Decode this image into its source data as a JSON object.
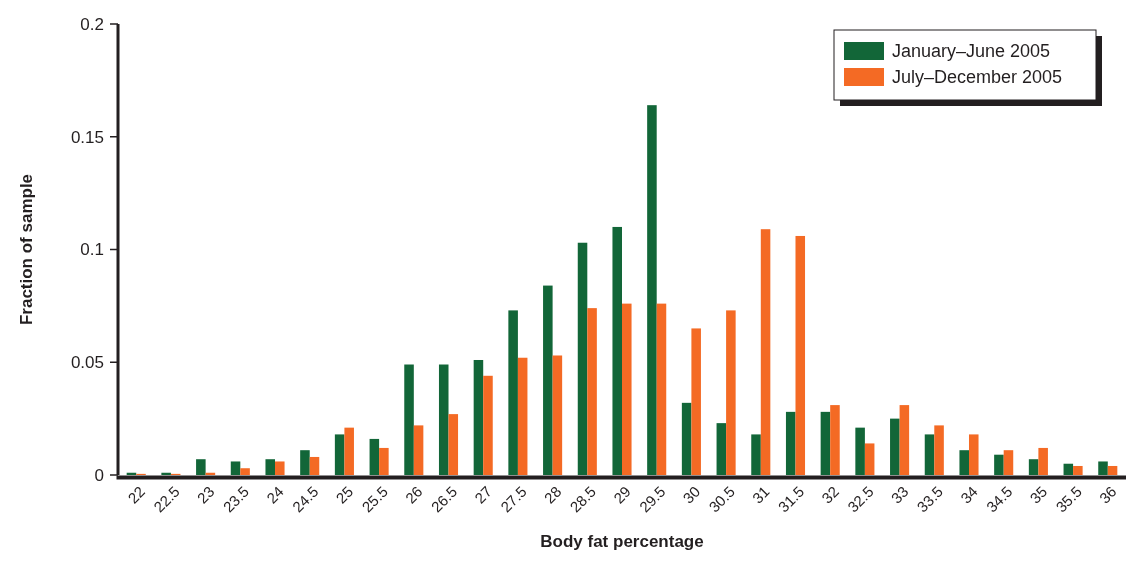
{
  "chart_data": {
    "type": "bar",
    "xlabel": "Body fat percentage",
    "ylabel": "Fraction of sample",
    "categories": [
      "22",
      "22.5",
      "23",
      "23.5",
      "24",
      "24.5",
      "25",
      "25.5",
      "26",
      "26.5",
      "27",
      "27.5",
      "28",
      "28.5",
      "29",
      "29.5",
      "30",
      "30.5",
      "31",
      "31.5",
      "32",
      "32.5",
      "33",
      "33.5",
      "34",
      "34.5",
      "35",
      "35.5",
      "36"
    ],
    "series": [
      {
        "name": "January–June 2005",
        "color": "#126638",
        "values": [
          0.001,
          0.001,
          0.007,
          0.006,
          0.007,
          0.011,
          0.018,
          0.016,
          0.049,
          0.049,
          0.051,
          0.073,
          0.084,
          0.103,
          0.11,
          0.164,
          0.032,
          0.023,
          0.018,
          0.028,
          0.028,
          0.021,
          0.025,
          0.018,
          0.011,
          0.009,
          0.007,
          0.005,
          0.006
        ]
      },
      {
        "name": "July–December 2005",
        "color": "#f46a24",
        "values": [
          0.0005,
          0.0005,
          0.001,
          0.003,
          0.006,
          0.008,
          0.021,
          0.012,
          0.022,
          0.027,
          0.044,
          0.052,
          0.053,
          0.074,
          0.076,
          0.076,
          0.065,
          0.073,
          0.109,
          0.106,
          0.031,
          0.014,
          0.031,
          0.022,
          0.018,
          0.011,
          0.012,
          0.004,
          0.004
        ]
      }
    ],
    "ylim": [
      0,
      0.2
    ],
    "yticks": [
      0,
      0.05,
      0.1,
      0.15,
      0.2
    ],
    "grid": false,
    "legend": "top right"
  }
}
